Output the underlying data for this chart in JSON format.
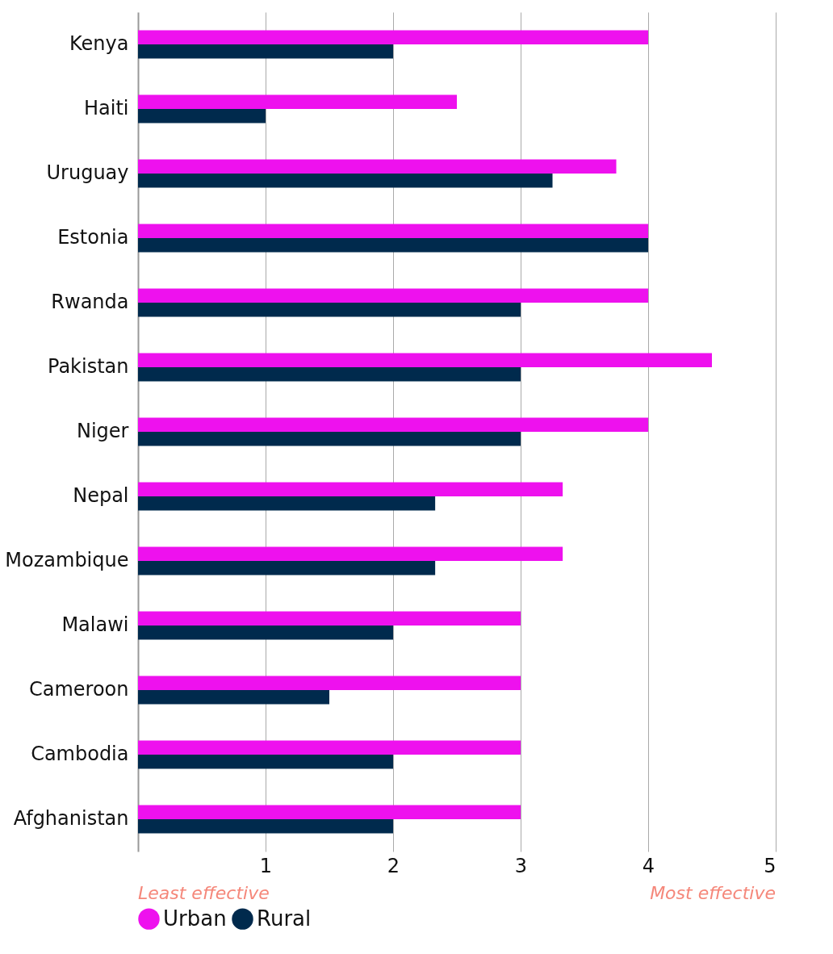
{
  "chart_data": {
    "type": "bar",
    "orientation": "horizontal",
    "categories": [
      "Kenya",
      "Haiti",
      "Uruguay",
      "Estonia",
      "Rwanda",
      "Pakistan",
      "Niger",
      "Nepal",
      "Mozambique",
      "Malawi",
      "Cameroon",
      "Cambodia",
      "Afghanistan"
    ],
    "series": [
      {
        "name": "Urban",
        "color": "#ee11ee",
        "values": [
          4,
          2.5,
          3.75,
          4,
          4,
          4.5,
          4,
          3.33,
          3.33,
          3,
          3,
          3,
          3
        ]
      },
      {
        "name": "Rural",
        "color": "#002a4d",
        "values": [
          2,
          1,
          3.25,
          4,
          3,
          3,
          3,
          2.33,
          2.33,
          2,
          1.5,
          2,
          2
        ]
      }
    ],
    "xlim": [
      0,
      5
    ],
    "xticks": [
      1,
      2,
      3,
      4,
      5
    ],
    "grid": "x",
    "legend": "bottom left",
    "annotations": [
      "Least effective",
      "Most effective"
    ]
  }
}
